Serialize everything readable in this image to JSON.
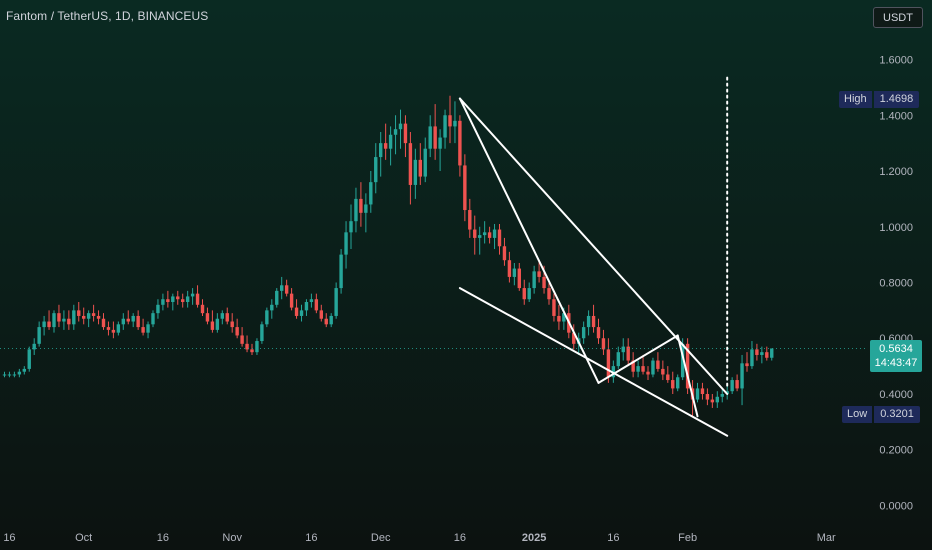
{
  "header": {
    "title": "Fantom / TetherUS, 1D, BINANCEUS",
    "currency_button": "USDT"
  },
  "markers": {
    "high_label": "High",
    "high_value": "1.4698",
    "low_label": "Low",
    "low_value": "0.3201"
  },
  "last_price": {
    "value": "0.5634",
    "countdown": "14:43:47"
  },
  "colors": {
    "background_top": "#0a2a22",
    "background_bottom": "#0c1210",
    "up": "#26a69a",
    "down": "#ef5350",
    "axis_text": "#b2b5be",
    "trendline": "#ffffff"
  },
  "chart_data": {
    "type": "candlestick",
    "symbol": "Fantom / TetherUS",
    "interval": "1D",
    "exchange": "BINANCEUS",
    "y_ticks": [
      "1.6000",
      "1.4000",
      "1.2000",
      "1.0000",
      "0.8000",
      "0.6000",
      "0.4000",
      "0.2000",
      "0.0000"
    ],
    "x_ticks": [
      "16",
      "Oct",
      "16",
      "Nov",
      "16",
      "Dec",
      "16",
      "2025",
      "16",
      "Feb",
      "Mar"
    ],
    "ylim": [
      -0.07,
      1.67
    ],
    "x_tick_index": [
      1,
      16,
      32,
      46,
      62,
      76,
      92,
      107,
      123,
      138,
      166
    ],
    "start_date": "2024-09-15",
    "high": 1.4698,
    "low": 0.3201,
    "last": 0.5634,
    "grid": false,
    "series": [
      {
        "name": "FTMUSDT",
        "ohlc": [
          [
            0.47,
            0.48,
            0.46,
            0.47
          ],
          [
            0.47,
            0.48,
            0.46,
            0.47
          ],
          [
            0.47,
            0.48,
            0.46,
            0.47
          ],
          [
            0.47,
            0.49,
            0.46,
            0.48
          ],
          [
            0.48,
            0.5,
            0.47,
            0.49
          ],
          [
            0.49,
            0.57,
            0.48,
            0.56
          ],
          [
            0.56,
            0.6,
            0.54,
            0.58
          ],
          [
            0.58,
            0.66,
            0.57,
            0.64
          ],
          [
            0.64,
            0.68,
            0.61,
            0.66
          ],
          [
            0.66,
            0.7,
            0.63,
            0.64
          ],
          [
            0.64,
            0.7,
            0.62,
            0.69
          ],
          [
            0.69,
            0.72,
            0.64,
            0.66
          ],
          [
            0.66,
            0.7,
            0.63,
            0.67
          ],
          [
            0.67,
            0.7,
            0.63,
            0.65
          ],
          [
            0.65,
            0.72,
            0.63,
            0.7
          ],
          [
            0.7,
            0.73,
            0.66,
            0.68
          ],
          [
            0.68,
            0.71,
            0.65,
            0.67
          ],
          [
            0.67,
            0.7,
            0.64,
            0.69
          ],
          [
            0.69,
            0.72,
            0.66,
            0.68
          ],
          [
            0.68,
            0.7,
            0.65,
            0.67
          ],
          [
            0.67,
            0.69,
            0.63,
            0.64
          ],
          [
            0.64,
            0.66,
            0.61,
            0.63
          ],
          [
            0.63,
            0.66,
            0.6,
            0.62
          ],
          [
            0.62,
            0.66,
            0.61,
            0.65
          ],
          [
            0.65,
            0.69,
            0.63,
            0.67
          ],
          [
            0.67,
            0.7,
            0.65,
            0.66
          ],
          [
            0.66,
            0.69,
            0.64,
            0.68
          ],
          [
            0.68,
            0.7,
            0.63,
            0.64
          ],
          [
            0.64,
            0.67,
            0.61,
            0.62
          ],
          [
            0.62,
            0.66,
            0.6,
            0.65
          ],
          [
            0.65,
            0.7,
            0.64,
            0.69
          ],
          [
            0.69,
            0.74,
            0.67,
            0.72
          ],
          [
            0.72,
            0.76,
            0.7,
            0.74
          ],
          [
            0.74,
            0.77,
            0.71,
            0.73
          ],
          [
            0.73,
            0.76,
            0.7,
            0.75
          ],
          [
            0.75,
            0.77,
            0.72,
            0.74
          ],
          [
            0.74,
            0.76,
            0.71,
            0.73
          ],
          [
            0.73,
            0.77,
            0.71,
            0.75
          ],
          [
            0.75,
            0.78,
            0.72,
            0.76
          ],
          [
            0.76,
            0.79,
            0.71,
            0.72
          ],
          [
            0.72,
            0.74,
            0.68,
            0.69
          ],
          [
            0.69,
            0.71,
            0.65,
            0.66
          ],
          [
            0.66,
            0.7,
            0.62,
            0.63
          ],
          [
            0.63,
            0.69,
            0.62,
            0.67
          ],
          [
            0.67,
            0.7,
            0.65,
            0.69
          ],
          [
            0.69,
            0.71,
            0.65,
            0.66
          ],
          [
            0.66,
            0.69,
            0.62,
            0.64
          ],
          [
            0.64,
            0.67,
            0.6,
            0.61
          ],
          [
            0.61,
            0.64,
            0.57,
            0.58
          ],
          [
            0.58,
            0.61,
            0.55,
            0.56
          ],
          [
            0.56,
            0.58,
            0.54,
            0.55
          ],
          [
            0.55,
            0.6,
            0.54,
            0.59
          ],
          [
            0.59,
            0.66,
            0.58,
            0.65
          ],
          [
            0.65,
            0.71,
            0.64,
            0.7
          ],
          [
            0.7,
            0.74,
            0.67,
            0.72
          ],
          [
            0.72,
            0.78,
            0.71,
            0.77
          ],
          [
            0.77,
            0.82,
            0.74,
            0.79
          ],
          [
            0.79,
            0.81,
            0.75,
            0.76
          ],
          [
            0.76,
            0.78,
            0.7,
            0.71
          ],
          [
            0.71,
            0.74,
            0.67,
            0.68
          ],
          [
            0.68,
            0.72,
            0.66,
            0.7
          ],
          [
            0.7,
            0.74,
            0.68,
            0.73
          ],
          [
            0.73,
            0.76,
            0.71,
            0.74
          ],
          [
            0.74,
            0.76,
            0.69,
            0.7
          ],
          [
            0.7,
            0.72,
            0.66,
            0.67
          ],
          [
            0.67,
            0.69,
            0.64,
            0.65
          ],
          [
            0.65,
            0.69,
            0.64,
            0.68
          ],
          [
            0.68,
            0.8,
            0.67,
            0.78
          ],
          [
            0.78,
            0.92,
            0.76,
            0.9
          ],
          [
            0.9,
            1.02,
            0.85,
            0.98
          ],
          [
            0.98,
            1.08,
            0.92,
            1.02
          ],
          [
            1.02,
            1.14,
            0.98,
            1.1
          ],
          [
            1.1,
            1.16,
            1.0,
            1.05
          ],
          [
            1.05,
            1.12,
            0.98,
            1.08
          ],
          [
            1.08,
            1.2,
            1.05,
            1.16
          ],
          [
            1.16,
            1.3,
            1.12,
            1.25
          ],
          [
            1.25,
            1.34,
            1.18,
            1.3
          ],
          [
            1.3,
            1.37,
            1.24,
            1.28
          ],
          [
            1.28,
            1.36,
            1.22,
            1.33
          ],
          [
            1.33,
            1.4,
            1.26,
            1.35
          ],
          [
            1.35,
            1.42,
            1.28,
            1.37
          ],
          [
            1.37,
            1.4,
            1.25,
            1.3
          ],
          [
            1.3,
            1.34,
            1.08,
            1.15
          ],
          [
            1.15,
            1.28,
            1.1,
            1.24
          ],
          [
            1.24,
            1.3,
            1.15,
            1.18
          ],
          [
            1.18,
            1.32,
            1.16,
            1.28
          ],
          [
            1.28,
            1.4,
            1.25,
            1.36
          ],
          [
            1.36,
            1.44,
            1.24,
            1.28
          ],
          [
            1.28,
            1.35,
            1.2,
            1.32
          ],
          [
            1.32,
            1.42,
            1.28,
            1.4
          ],
          [
            1.4,
            1.47,
            1.3,
            1.36
          ],
          [
            1.36,
            1.45,
            1.3,
            1.38
          ],
          [
            1.38,
            1.4,
            1.18,
            1.22
          ],
          [
            1.22,
            1.26,
            1.02,
            1.06
          ],
          [
            1.06,
            1.1,
            0.96,
            0.99
          ],
          [
            0.99,
            1.04,
            0.9,
            0.96
          ],
          [
            0.96,
            1.0,
            0.9,
            0.97
          ],
          [
            0.97,
            1.02,
            0.94,
            0.98
          ],
          [
            0.98,
            1.0,
            0.94,
            0.96
          ],
          [
            0.96,
            1.01,
            0.92,
            0.99
          ],
          [
            0.99,
            1.01,
            0.9,
            0.93
          ],
          [
            0.93,
            0.96,
            0.86,
            0.88
          ],
          [
            0.88,
            0.91,
            0.8,
            0.82
          ],
          [
            0.82,
            0.87,
            0.79,
            0.85
          ],
          [
            0.85,
            0.87,
            0.77,
            0.78
          ],
          [
            0.78,
            0.81,
            0.72,
            0.74
          ],
          [
            0.74,
            0.8,
            0.73,
            0.78
          ],
          [
            0.78,
            0.86,
            0.76,
            0.84
          ],
          [
            0.84,
            0.88,
            0.8,
            0.82
          ],
          [
            0.82,
            0.86,
            0.76,
            0.78
          ],
          [
            0.78,
            0.81,
            0.72,
            0.74
          ],
          [
            0.74,
            0.76,
            0.66,
            0.68
          ],
          [
            0.68,
            0.72,
            0.63,
            0.66
          ],
          [
            0.66,
            0.71,
            0.63,
            0.69
          ],
          [
            0.69,
            0.72,
            0.6,
            0.62
          ],
          [
            0.62,
            0.65,
            0.56,
            0.58
          ],
          [
            0.58,
            0.62,
            0.54,
            0.6
          ],
          [
            0.6,
            0.66,
            0.58,
            0.64
          ],
          [
            0.64,
            0.7,
            0.61,
            0.68
          ],
          [
            0.68,
            0.72,
            0.62,
            0.64
          ],
          [
            0.64,
            0.67,
            0.58,
            0.6
          ],
          [
            0.6,
            0.63,
            0.54,
            0.56
          ],
          [
            0.56,
            0.6,
            0.44,
            0.46
          ],
          [
            0.46,
            0.52,
            0.44,
            0.5
          ],
          [
            0.5,
            0.57,
            0.49,
            0.55
          ],
          [
            0.55,
            0.6,
            0.52,
            0.57
          ],
          [
            0.57,
            0.6,
            0.5,
            0.52
          ],
          [
            0.52,
            0.55,
            0.46,
            0.48
          ],
          [
            0.48,
            0.52,
            0.46,
            0.5
          ],
          [
            0.5,
            0.54,
            0.47,
            0.48
          ],
          [
            0.48,
            0.5,
            0.45,
            0.47
          ],
          [
            0.47,
            0.53,
            0.46,
            0.52
          ],
          [
            0.52,
            0.55,
            0.48,
            0.49
          ],
          [
            0.49,
            0.52,
            0.45,
            0.47
          ],
          [
            0.47,
            0.5,
            0.44,
            0.45
          ],
          [
            0.45,
            0.48,
            0.4,
            0.42
          ],
          [
            0.42,
            0.47,
            0.41,
            0.46
          ],
          [
            0.46,
            0.6,
            0.45,
            0.58
          ],
          [
            0.58,
            0.6,
            0.4,
            0.42
          ],
          [
            0.42,
            0.45,
            0.32,
            0.38
          ],
          [
            0.38,
            0.44,
            0.37,
            0.42
          ],
          [
            0.42,
            0.44,
            0.38,
            0.4
          ],
          [
            0.4,
            0.42,
            0.36,
            0.38
          ],
          [
            0.38,
            0.4,
            0.35,
            0.37
          ],
          [
            0.37,
            0.41,
            0.35,
            0.39
          ],
          [
            0.39,
            0.42,
            0.37,
            0.4
          ],
          [
            0.4,
            0.43,
            0.38,
            0.41
          ],
          [
            0.41,
            0.46,
            0.4,
            0.45
          ],
          [
            0.45,
            0.47,
            0.41,
            0.42
          ],
          [
            0.42,
            0.54,
            0.36,
            0.51
          ],
          [
            0.51,
            0.55,
            0.48,
            0.5
          ],
          [
            0.5,
            0.59,
            0.49,
            0.56
          ],
          [
            0.56,
            0.58,
            0.52,
            0.54
          ],
          [
            0.54,
            0.57,
            0.51,
            0.55
          ],
          [
            0.55,
            0.57,
            0.52,
            0.53
          ],
          [
            0.53,
            0.56,
            0.52,
            0.5634
          ]
        ]
      }
    ],
    "drawings": [
      {
        "name": "upper-trendline",
        "from": [
          92,
          1.46
        ],
        "to": [
          146,
          0.4
        ]
      },
      {
        "name": "inner-trendline",
        "from": [
          92,
          1.46
        ],
        "to": [
          120,
          0.44
        ]
      },
      {
        "name": "lower-trendline",
        "from": [
          92,
          0.78
        ],
        "to": [
          146,
          0.25
        ]
      },
      {
        "name": "zigzag-1",
        "from": [
          120,
          0.44
        ],
        "to": [
          136,
          0.61
        ]
      },
      {
        "name": "zigzag-2",
        "from": [
          136,
          0.61
        ],
        "to": [
          140,
          0.32
        ]
      },
      {
        "name": "projection-line",
        "from": [
          146,
          0.43
        ],
        "to": [
          146,
          1.54
        ]
      }
    ]
  }
}
